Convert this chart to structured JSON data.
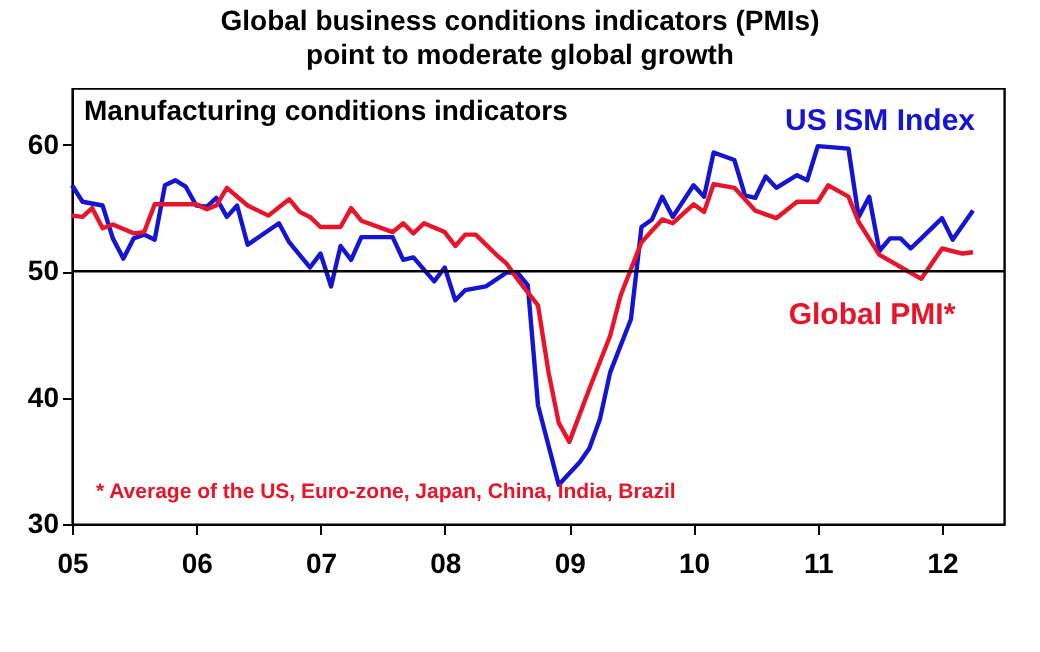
{
  "chart_data": {
    "type": "line",
    "title": "Global business conditions indicators (PMIs) point to moderate global growth",
    "subtitle": "Manufacturing conditions indicators",
    "annotations": [
      "* Average of the US, Euro-zone, Japan, China, India, Brazil"
    ],
    "xlim": [
      "2005-01",
      "2012-07"
    ],
    "xticks": [
      {
        "value": "2005-01",
        "label": "05"
      },
      {
        "value": "2006-01",
        "label": "06"
      },
      {
        "value": "2007-01",
        "label": "07"
      },
      {
        "value": "2008-01",
        "label": "08"
      },
      {
        "value": "2009-01",
        "label": "09"
      },
      {
        "value": "2010-01",
        "label": "10"
      },
      {
        "value": "2011-01",
        "label": "11"
      },
      {
        "value": "2012-01",
        "label": "12"
      }
    ],
    "ylim": [
      30,
      64.5
    ],
    "yticks": [
      30,
      40,
      50,
      60
    ],
    "grid": false,
    "legend": false,
    "marker": "none",
    "line_style": "solid",
    "ref_lines": [
      {
        "axis": "y",
        "value": 50,
        "label": null,
        "color": "#000000"
      }
    ],
    "series": [
      {
        "name": "US ISM Index",
        "color": "#1414d2",
        "x": [
          "2005-01",
          "2005-02",
          "2005-04",
          "2005-05",
          "2005-06",
          "2005-07",
          "2005-08",
          "2005-09",
          "2005-10",
          "2005-11",
          "2005-12",
          "2006-01",
          "2006-02",
          "2006-03",
          "2006-04",
          "2006-05",
          "2006-06",
          "2006-09",
          "2006-10",
          "2006-12",
          "2007-01",
          "2007-02",
          "2007-03",
          "2007-04",
          "2007-05",
          "2007-08",
          "2007-09",
          "2007-10",
          "2007-12",
          "2008-01",
          "2008-02",
          "2008-03",
          "2008-05",
          "2008-07",
          "2008-08",
          "2008-09",
          "2008-10",
          "2008-12",
          "2009-02",
          "2009-03",
          "2009-04",
          "2009-05",
          "2009-07",
          "2009-08",
          "2009-09",
          "2009-10",
          "2009-11",
          "2010-01",
          "2010-02",
          "2010-03",
          "2010-05",
          "2010-06",
          "2010-07",
          "2010-08",
          "2010-09",
          "2010-11",
          "2010-12",
          "2011-01",
          "2011-04",
          "2011-05",
          "2011-06",
          "2011-07",
          "2011-08",
          "2011-09",
          "2011-10",
          "2011-11",
          "2012-01",
          "2012-02",
          "2012-04"
        ],
        "values": [
          56.8,
          55.5,
          55.2,
          52.6,
          51.0,
          52.6,
          52.9,
          52.5,
          56.8,
          57.2,
          56.7,
          55.2,
          55.1,
          55.8,
          54.3,
          55.2,
          52.1,
          53.8,
          52.3,
          50.3,
          51.4,
          48.8,
          52.0,
          50.9,
          52.7,
          52.7,
          50.9,
          51.1,
          49.2,
          50.3,
          47.7,
          48.5,
          48.8,
          49.9,
          49.9,
          48.9,
          39.4,
          33.1,
          34.9,
          36.0,
          38.3,
          42.0,
          46.2,
          53.5,
          54.1,
          55.9,
          54.3,
          56.8,
          55.9,
          59.4,
          58.8,
          56.0,
          55.8,
          57.5,
          56.6,
          57.6,
          57.2,
          59.9,
          59.7,
          54.3,
          55.9,
          51.6,
          52.6,
          52.6,
          51.8,
          52.6,
          54.2,
          52.5,
          54.8
        ]
      },
      {
        "name": "Global PMI*",
        "color": "#e8142a",
        "x": [
          "2005-01",
          "2005-02",
          "2005-03",
          "2005-04",
          "2005-05",
          "2005-07",
          "2005-08",
          "2005-09",
          "2006-01",
          "2006-02",
          "2006-03",
          "2006-04",
          "2006-06",
          "2006-08",
          "2006-10",
          "2006-11",
          "2006-12",
          "2007-01",
          "2007-03",
          "2007-04",
          "2007-05",
          "2007-08",
          "2007-09",
          "2007-10",
          "2007-11",
          "2008-01",
          "2008-02",
          "2008-03",
          "2008-04",
          "2008-06",
          "2008-07",
          "2008-08",
          "2008-10",
          "2008-11",
          "2008-12",
          "2009-01",
          "2009-03",
          "2009-05",
          "2009-06",
          "2009-08",
          "2009-10",
          "2009-11",
          "2010-01",
          "2010-02",
          "2010-03",
          "2010-05",
          "2010-07",
          "2010-09",
          "2010-11",
          "2011-01",
          "2011-02",
          "2011-04",
          "2011-05",
          "2011-07",
          "2011-11",
          "2012-01",
          "2012-03",
          "2012-04"
        ],
        "values": [
          54.4,
          54.3,
          55.0,
          53.4,
          53.7,
          53.0,
          53.1,
          55.3,
          55.3,
          54.9,
          55.2,
          56.6,
          55.2,
          54.4,
          55.7,
          54.7,
          54.3,
          53.5,
          53.5,
          55.0,
          54.0,
          53.1,
          53.8,
          53.0,
          53.8,
          53.1,
          52.0,
          52.9,
          52.9,
          51.3,
          50.6,
          49.4,
          47.3,
          42.0,
          38.0,
          36.5,
          40.7,
          44.9,
          48.1,
          52.3,
          54.1,
          53.8,
          55.3,
          54.7,
          56.9,
          56.6,
          54.8,
          54.2,
          55.5,
          55.5,
          56.8,
          55.9,
          53.9,
          51.3,
          49.4,
          51.8,
          51.4,
          51.5
        ]
      }
    ]
  }
}
